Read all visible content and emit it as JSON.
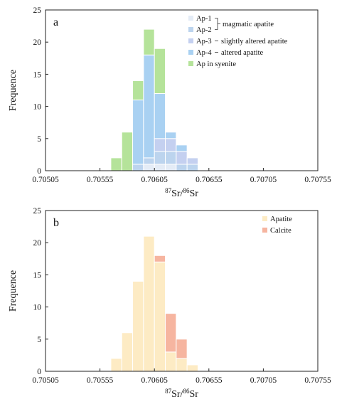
{
  "chart_data": [
    {
      "type": "bar",
      "stacked": true,
      "panel_label": "a",
      "xlabel_parts": [
        "87",
        "Sr/",
        "86",
        "Sr"
      ],
      "ylabel": "Frequence",
      "xlim": [
        0.70505,
        0.70755
      ],
      "ylim": [
        0,
        25
      ],
      "bin_width": 0.0001,
      "x_ticks": [
        "0.70505",
        "0.70555",
        "0.70605",
        "0.70655",
        "0.70705",
        "0.70755"
      ],
      "y_ticks": [
        "0",
        "5",
        "10",
        "15",
        "20",
        "25"
      ],
      "bin_starts": [
        0.70565,
        0.70575,
        0.70585,
        0.70595,
        0.70605,
        0.70615,
        0.70625,
        0.70635
      ],
      "series": [
        {
          "name": "Ap-1",
          "color": "#e4ecf6",
          "values": [
            0,
            0,
            0,
            1,
            1,
            1,
            0,
            0
          ]
        },
        {
          "name": "Ap-2",
          "color": "#bcd4ee",
          "values": [
            0,
            0,
            1,
            1,
            2,
            2,
            1,
            1
          ]
        },
        {
          "name": "Ap-3",
          "color": "#c4d0f0",
          "values": [
            0,
            0,
            0,
            0,
            2,
            2,
            2,
            1
          ]
        },
        {
          "name": "Ap-4",
          "color": "#a9d1f2",
          "values": [
            0,
            0,
            10,
            16,
            7,
            1,
            1,
            0
          ]
        },
        {
          "name": "Ap in syenite",
          "color": "#b5e39a",
          "values": [
            2,
            6,
            3,
            4,
            7,
            0,
            0,
            0
          ]
        }
      ],
      "legend": {
        "placement": "top-right",
        "entries": [
          "Ap-1",
          "Ap-2",
          "Ap-3",
          "Ap-4",
          "Ap in syenite"
        ],
        "notes": [
          {
            "text": "magmatic apatite",
            "applies_to": [
              "Ap-1",
              "Ap-2"
            ]
          },
          {
            "text": "slightly altered apatite",
            "applies_to": [
              "Ap-3"
            ]
          },
          {
            "text": "altered apatite",
            "applies_to": [
              "Ap-4"
            ]
          }
        ]
      }
    },
    {
      "type": "bar",
      "stacked": true,
      "panel_label": "b",
      "xlabel_parts": [
        "87",
        "Sr/",
        "86",
        "Sr"
      ],
      "ylabel": "Frequence",
      "xlim": [
        0.70505,
        0.70755
      ],
      "ylim": [
        0,
        25
      ],
      "bin_width": 0.0001,
      "x_ticks": [
        "0.70505",
        "0.70555",
        "0.70605",
        "0.70655",
        "0.70705",
        "0.70755"
      ],
      "y_ticks": [
        "0",
        "5",
        "10",
        "15",
        "20",
        "25"
      ],
      "bin_starts": [
        0.70565,
        0.70575,
        0.70585,
        0.70595,
        0.70605,
        0.70615,
        0.70625,
        0.70635
      ],
      "series": [
        {
          "name": "Apatite",
          "color": "#fdebc4",
          "values": [
            2,
            6,
            14,
            21,
            17,
            3,
            2,
            1
          ]
        },
        {
          "name": "Calcite",
          "color": "#f6b5a0",
          "values": [
            0,
            0,
            0,
            0,
            1,
            6,
            3,
            0
          ]
        }
      ],
      "legend": {
        "placement": "top-right",
        "entries": [
          "Apatite",
          "Calcite"
        ]
      }
    }
  ]
}
